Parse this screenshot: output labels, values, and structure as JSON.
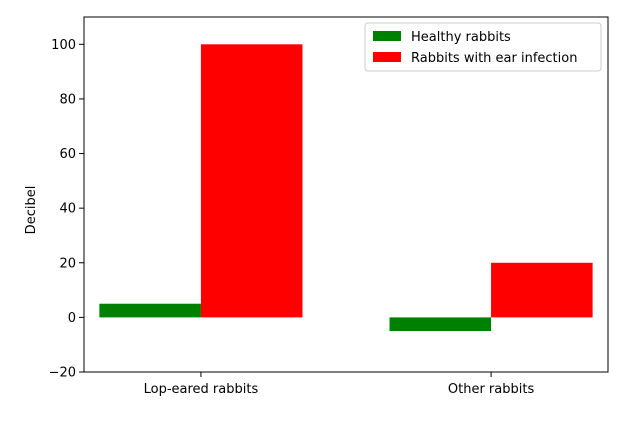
{
  "chart_data": {
    "type": "bar",
    "title": "",
    "xlabel": "",
    "ylabel": "Decibel",
    "categories": [
      "Lop-eared rabbits",
      "Other rabbits"
    ],
    "series": [
      {
        "name": "Healthy rabbits",
        "values": [
          5,
          -5
        ],
        "color": "#008000"
      },
      {
        "name": "Rabbits with ear infection",
        "values": [
          100,
          20
        ],
        "color": "#ff0000"
      }
    ],
    "ylim": [
      -20,
      110
    ],
    "yticks": [
      -20,
      0,
      20,
      40,
      60,
      80,
      100
    ],
    "ytick_labels": [
      "−20",
      "0",
      "20",
      "40",
      "60",
      "80",
      "100"
    ],
    "grid": false,
    "legend_position": "top-right"
  }
}
